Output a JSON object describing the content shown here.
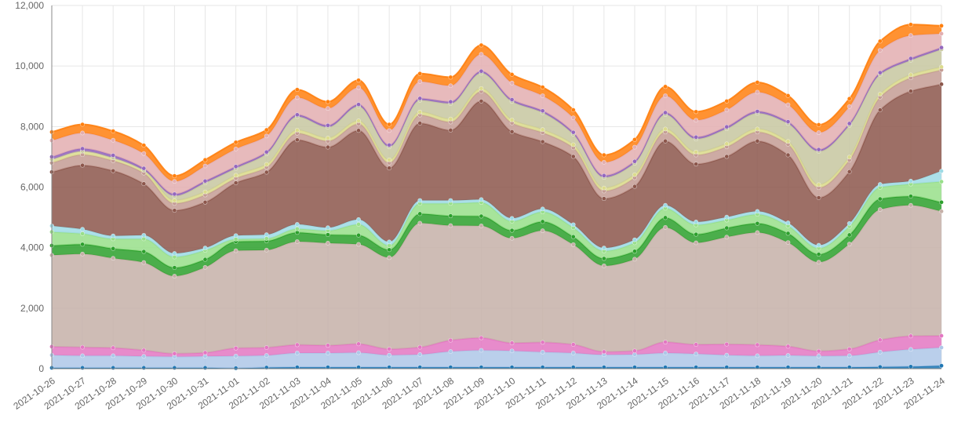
{
  "chart_data": {
    "type": "area",
    "stacked": true,
    "smooth": true,
    "grid": true,
    "legend": "none",
    "ylim": [
      0,
      12000
    ],
    "y_ticks": [
      "0",
      "2,000",
      "4,000",
      "6,000",
      "8,000",
      "10,000",
      "12,000"
    ],
    "y_tick_values": [
      0,
      2000,
      4000,
      6000,
      8000,
      10000,
      12000
    ],
    "x": [
      "2021-10-26",
      "2021-10-27",
      "2021-10-28",
      "2021-10-29",
      "2021-10-30",
      "2021-10-31",
      "2021-11-01",
      "2021-11-02",
      "2021-11-03",
      "2021-11-04",
      "2021-11-05",
      "2021-11-06",
      "2021-11-07",
      "2021-11-08",
      "2021-11-09",
      "2021-11-10",
      "2021-11-11",
      "2021-11-12",
      "2021-11-13",
      "2021-11-14",
      "2021-11-15",
      "2021-11-16",
      "2021-11-17",
      "2021-11-18",
      "2021-11-19",
      "2021-11-20",
      "2021-11-21",
      "2021-11-22",
      "2021-11-23",
      "2021-11-24"
    ],
    "series": [
      {
        "color": "#1f77b4",
        "values": [
          30,
          30,
          30,
          30,
          30,
          30,
          20,
          40,
          50,
          50,
          50,
          50,
          50,
          50,
          50,
          50,
          50,
          50,
          50,
          50,
          50,
          50,
          50,
          50,
          50,
          50,
          50,
          60,
          70,
          100
        ]
      },
      {
        "color": "#aec7e8",
        "values": [
          420,
          400,
          400,
          380,
          370,
          380,
          400,
          400,
          470,
          470,
          480,
          400,
          420,
          520,
          560,
          540,
          500,
          470,
          410,
          420,
          470,
          440,
          400,
          380,
          390,
          370,
          380,
          490,
          570,
          600
        ]
      },
      {
        "color": "#e377c2",
        "values": [
          280,
          280,
          260,
          200,
          100,
          120,
          260,
          260,
          270,
          250,
          290,
          200,
          240,
          370,
          410,
          260,
          320,
          280,
          100,
          120,
          360,
          310,
          360,
          360,
          300,
          160,
          220,
          400,
          440,
          390
        ]
      },
      {
        "color": "#c5b0a8",
        "values": [
          3020,
          3080,
          2960,
          2900,
          2560,
          2820,
          3220,
          3220,
          3410,
          3380,
          3290,
          3020,
          4100,
          3790,
          3700,
          3460,
          3690,
          3300,
          2840,
          3030,
          3790,
          3360,
          3540,
          3710,
          3430,
          2940,
          3470,
          4310,
          4320,
          4110
        ]
      },
      {
        "color": "#2ca02c",
        "values": [
          320,
          320,
          320,
          360,
          280,
          260,
          300,
          300,
          300,
          280,
          300,
          260,
          310,
          320,
          320,
          260,
          300,
          260,
          240,
          260,
          320,
          280,
          300,
          300,
          300,
          260,
          300,
          350,
          300,
          300
        ]
      },
      {
        "color": "#98df8a",
        "values": [
          450,
          350,
          320,
          420,
          350,
          300,
          80,
          80,
          120,
          130,
          360,
          140,
          340,
          410,
          450,
          300,
          320,
          300,
          250,
          280,
          310,
          310,
          260,
          300,
          250,
          200,
          280,
          380,
          400,
          680
        ]
      },
      {
        "color": "#9edae5",
        "values": [
          200,
          150,
          100,
          120,
          120,
          80,
          120,
          130,
          150,
          100,
          160,
          120,
          100,
          100,
          100,
          100,
          100,
          100,
          100,
          100,
          100,
          100,
          100,
          100,
          100,
          100,
          100,
          100,
          100,
          350
        ]
      },
      {
        "color": "#8c564b",
        "values": [
          1780,
          2110,
          2150,
          1700,
          1420,
          1510,
          1740,
          2060,
          2790,
          2660,
          2940,
          2440,
          2550,
          2320,
          3250,
          2860,
          2220,
          2250,
          1630,
          1760,
          2120,
          1910,
          2000,
          2320,
          2240,
          1570,
          1710,
          2460,
          2970,
          2870
        ]
      },
      {
        "color": "#c49c94",
        "values": [
          300,
          350,
          330,
          350,
          230,
          240,
          150,
          160,
          220,
          200,
          220,
          170,
          270,
          270,
          320,
          290,
          300,
          290,
          250,
          290,
          300,
          300,
          320,
          300,
          350,
          330,
          380,
          420,
          440,
          470
        ]
      },
      {
        "color": "#dbdb8d",
        "values": [
          120,
          120,
          100,
          100,
          100,
          100,
          100,
          100,
          100,
          100,
          100,
          100,
          100,
          100,
          100,
          100,
          100,
          100,
          100,
          100,
          100,
          100,
          100,
          100,
          100,
          100,
          100,
          100,
          100,
          100
        ]
      },
      {
        "color": "#c7c7a0",
        "values": [
          0,
          0,
          0,
          0,
          150,
          300,
          230,
          350,
          450,
          360,
          480,
          430,
          390,
          510,
          510,
          610,
          560,
          350,
          350,
          380,
          480,
          430,
          500,
          520,
          590,
          1100,
          1050,
          650,
          480,
          580
        ]
      },
      {
        "color": "#9467bd",
        "values": [
          80,
          80,
          80,
          60,
          60,
          60,
          60,
          60,
          60,
          60,
          60,
          60,
          60,
          60,
          60,
          60,
          60,
          60,
          60,
          60,
          60,
          60,
          60,
          60,
          60,
          60,
          60,
          60,
          60,
          60
        ]
      },
      {
        "color": "#e3aeb0",
        "values": [
          540,
          520,
          500,
          490,
          420,
          500,
          580,
          530,
          570,
          560,
          560,
          480,
          560,
          530,
          560,
          550,
          500,
          480,
          440,
          470,
          560,
          560,
          560,
          640,
          560,
          560,
          560,
          740,
          760,
          460
        ]
      },
      {
        "color": "#ff7f0e",
        "values": [
          280,
          280,
          300,
          270,
          180,
          200,
          220,
          200,
          260,
          220,
          240,
          200,
          260,
          280,
          300,
          280,
          280,
          260,
          240,
          250,
          300,
          280,
          290,
          320,
          300,
          260,
          260,
          300,
          360,
          260
        ]
      }
    ]
  }
}
